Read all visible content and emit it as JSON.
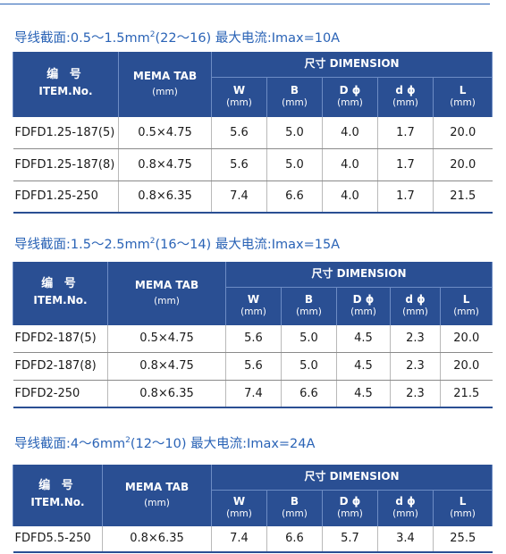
{
  "header": {
    "item_cn": "编 号",
    "item_en": "ITEM.No.",
    "tab_label": "MEMA TAB",
    "tab_unit": "(mm)",
    "dimension_label": "尺寸  DIMENSION",
    "cols": [
      {
        "label": "W",
        "unit": "(mm)"
      },
      {
        "label": "B",
        "unit": "(mm)"
      },
      {
        "label": "D ϕ",
        "unit": "(mm)"
      },
      {
        "label": "d ϕ",
        "unit": "(mm)"
      },
      {
        "label": "L",
        "unit": "(mm)"
      }
    ]
  },
  "sections": [
    {
      "title_pre": "导线截面:0.5～1.5mm",
      "title_sup": "2",
      "title_post": "(22～16)  最大电流:Imax=10A",
      "rows": [
        {
          "item": "FDFD1.25-187(5)",
          "tab": "0.5×4.75",
          "w": "5.6",
          "b": "5.0",
          "D": "4.0",
          "d": "1.7",
          "l": "20.0"
        },
        {
          "item": "FDFD1.25-187(8)",
          "tab": "0.8×4.75",
          "w": "5.6",
          "b": "5.0",
          "D": "4.0",
          "d": "1.7",
          "l": "20.0"
        },
        {
          "item": "FDFD1.25-250",
          "tab": "0.8×6.35",
          "w": "7.4",
          "b": "6.6",
          "D": "4.0",
          "d": "1.7",
          "l": "21.5"
        }
      ]
    },
    {
      "title_pre": "导线截面:1.5～2.5mm",
      "title_sup": "2",
      "title_post": "(16～14)  最大电流:Imax=15A",
      "rows": [
        {
          "item": "FDFD2-187(5)",
          "tab": "0.5×4.75",
          "w": "5.6",
          "b": "5.0",
          "D": "4.5",
          "d": "2.3",
          "l": "20.0"
        },
        {
          "item": "FDFD2-187(8)",
          "tab": "0.8×4.75",
          "w": "5.6",
          "b": "5.0",
          "D": "4.5",
          "d": "2.3",
          "l": "20.0"
        },
        {
          "item": "FDFD2-250",
          "tab": "0.8×6.35",
          "w": "7.4",
          "b": "6.6",
          "D": "4.5",
          "d": "2.3",
          "l": "21.5"
        }
      ]
    },
    {
      "title_pre": "导线截面:4～6mm",
      "title_sup": "2",
      "title_post": "(12～10)  最大电流:Imax=24A",
      "rows": [
        {
          "item": "FDFD5.5-250",
          "tab": "0.8×6.35",
          "w": "7.4",
          "b": "6.6",
          "D": "5.7",
          "d": "3.4",
          "l": "25.5"
        }
      ]
    }
  ]
}
